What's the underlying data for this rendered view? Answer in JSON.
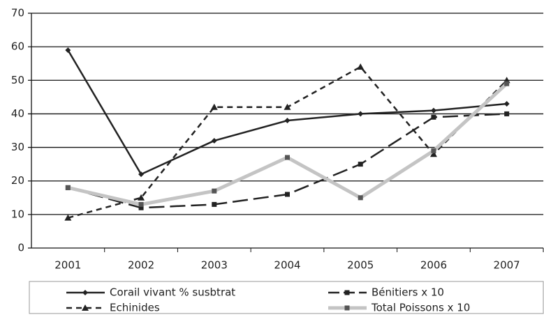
{
  "chart_data": {
    "type": "line",
    "categories": [
      "2001",
      "2002",
      "2003",
      "2004",
      "2005",
      "2006",
      "2007"
    ],
    "series": [
      {
        "name": "Corail vivant  % susbtrat",
        "color": "#222222",
        "marker": "diamond",
        "line_style": "solid",
        "values": [
          59,
          22,
          32,
          38,
          40,
          41,
          43
        ]
      },
      {
        "name": "Bénitiers  x 10",
        "color": "#222222",
        "marker": "square",
        "line_style": "long-dash",
        "values": [
          18,
          12,
          13,
          16,
          25,
          39,
          40
        ]
      },
      {
        "name": "Echinides",
        "color": "#222222",
        "marker": "triangle",
        "line_style": "short-dash",
        "values": [
          9,
          15,
          42,
          42,
          54,
          28,
          50
        ]
      },
      {
        "name": "Total Poissons x 10",
        "color": "#c4c4c4",
        "marker": "square",
        "line_style": "thick",
        "values": [
          18,
          13,
          17,
          27,
          15,
          29,
          49
        ]
      }
    ],
    "ylim": [
      0,
      70
    ],
    "yticks": [
      0,
      10,
      20,
      30,
      40,
      50,
      60,
      70
    ],
    "grid": true,
    "legend": "bottom"
  }
}
